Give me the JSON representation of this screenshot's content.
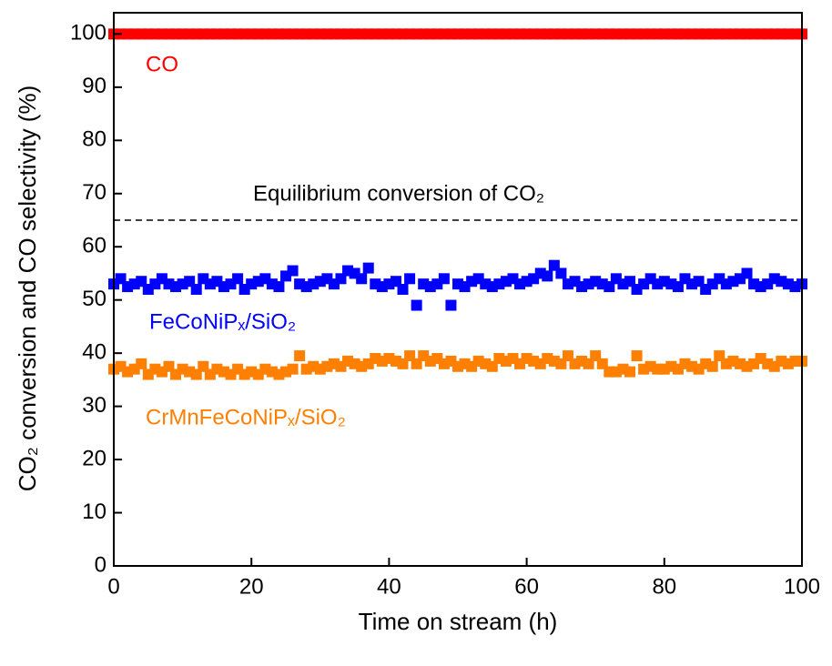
{
  "chart_data": {
    "type": "scatter",
    "x_label": "Time on stream (h)",
    "y_label": "CO₂ conversion and CO selectivity (%)",
    "xlim": [
      0,
      100
    ],
    "xticks": [
      0,
      20,
      40,
      60,
      80,
      100
    ],
    "ylim": [
      0,
      104
    ],
    "yticks": [
      0,
      10,
      20,
      30,
      40,
      50,
      60,
      70,
      80,
      90,
      100
    ],
    "x": [
      0,
      1,
      2,
      3,
      4,
      5,
      6,
      7,
      8,
      9,
      10,
      11,
      12,
      13,
      14,
      15,
      16,
      17,
      18,
      19,
      20,
      21,
      22,
      23,
      24,
      25,
      26,
      27,
      28,
      29,
      30,
      31,
      32,
      33,
      34,
      35,
      36,
      37,
      38,
      39,
      40,
      41,
      42,
      43,
      44,
      45,
      46,
      47,
      48,
      49,
      50,
      51,
      52,
      53,
      54,
      55,
      56,
      57,
      58,
      59,
      60,
      61,
      62,
      63,
      64,
      65,
      66,
      67,
      68,
      69,
      70,
      71,
      72,
      73,
      74,
      75,
      76,
      77,
      78,
      79,
      80,
      81,
      82,
      83,
      84,
      85,
      86,
      87,
      88,
      89,
      90,
      91,
      92,
      93,
      94,
      95,
      96,
      97,
      98,
      99,
      100
    ],
    "series": [
      {
        "name": "CO",
        "color": "#ff0000",
        "values": [
          100,
          100,
          100,
          100,
          100,
          100,
          100,
          100,
          100,
          100,
          100,
          100,
          100,
          100,
          100,
          100,
          100,
          100,
          100,
          100,
          100,
          100,
          100,
          100,
          100,
          100,
          100,
          100,
          100,
          100,
          100,
          100,
          100,
          100,
          100,
          100,
          100,
          100,
          100,
          100,
          100,
          100,
          100,
          100,
          100,
          100,
          100,
          100,
          100,
          100,
          100,
          100,
          100,
          100,
          100,
          100,
          100,
          100,
          100,
          100,
          100,
          100,
          100,
          100,
          100,
          100,
          100,
          100,
          100,
          100,
          100,
          100,
          100,
          100,
          100,
          100,
          100,
          100,
          100,
          100,
          100,
          100,
          100,
          100,
          100,
          100,
          100,
          100,
          100,
          100,
          100,
          100,
          100,
          100,
          100,
          100,
          100,
          100,
          100,
          100,
          100
        ]
      },
      {
        "name": "FeCoNiPₓ/SiO₂",
        "color": "#0000ff",
        "values": [
          53,
          54,
          52.5,
          53,
          53.5,
          52,
          53,
          54,
          53,
          52.5,
          53,
          53.5,
          52,
          54,
          53,
          53.5,
          52.5,
          53,
          54,
          52,
          53,
          53.5,
          54,
          53,
          52.5,
          54.5,
          55.5,
          53,
          52.5,
          53,
          53.5,
          54,
          53,
          54,
          55.5,
          55,
          54,
          56,
          53,
          52.5,
          53,
          53.5,
          52,
          54,
          49,
          53,
          52.5,
          53,
          54,
          49,
          53,
          52.5,
          53.5,
          54,
          53,
          52.5,
          53,
          53.5,
          54,
          53,
          53.5,
          54,
          55,
          54.5,
          56.5,
          55,
          53,
          53.5,
          52.5,
          53,
          53.5,
          53,
          52.5,
          54,
          53,
          53.5,
          52,
          53,
          54,
          53,
          53.5,
          53,
          52.5,
          54,
          53,
          53.5,
          52,
          53,
          54,
          53,
          53.5,
          54,
          55,
          53,
          52.5,
          53,
          54,
          53.5,
          53,
          52.5,
          53
        ]
      },
      {
        "name": "CrMnFeCoNiPₓ/SiO₂",
        "color": "#ff7f00",
        "values": [
          37,
          37.5,
          36.5,
          37,
          38,
          36,
          37,
          36.5,
          37.5,
          36,
          37,
          36.5,
          36,
          37.5,
          36,
          37,
          36.5,
          36,
          37,
          36,
          36.5,
          36,
          37,
          36.5,
          36,
          36.5,
          37,
          39.5,
          37,
          37.5,
          37,
          37.5,
          38,
          37.5,
          38.5,
          38,
          37.5,
          38,
          39,
          38.5,
          39,
          38.5,
          38,
          39.5,
          38,
          39.5,
          38.5,
          39,
          38,
          38.5,
          37.5,
          38,
          37.5,
          38.5,
          38,
          37.5,
          39,
          38.5,
          39,
          38,
          39,
          38.5,
          38,
          39,
          38.5,
          38,
          39.5,
          38,
          38.5,
          38,
          39.5,
          38,
          36.5,
          36.5,
          37,
          36.5,
          39.5,
          37,
          37.5,
          37,
          37,
          37.5,
          37,
          38,
          37.5,
          37,
          38,
          37.5,
          39.5,
          38,
          38.5,
          38,
          37.5,
          38,
          39,
          38,
          37.5,
          38.5,
          38,
          38.5,
          38.5
        ]
      }
    ],
    "reference_line": {
      "value": 65,
      "label": "Equilibrium conversion of CO₂"
    }
  }
}
